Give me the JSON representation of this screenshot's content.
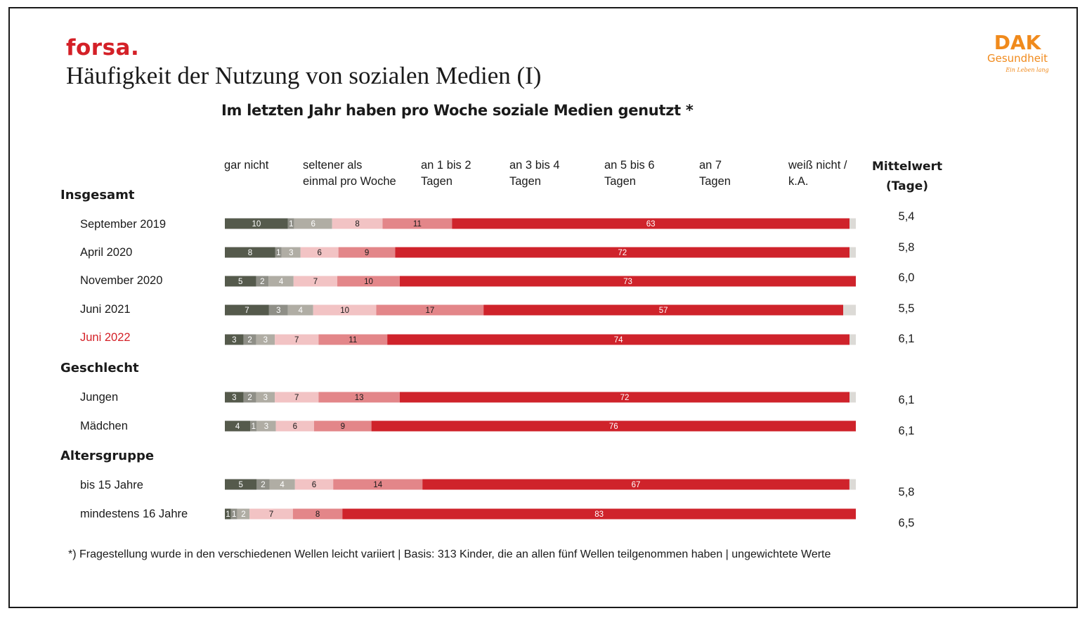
{
  "brand": "forsa.",
  "logo": {
    "line1": "DAK",
    "line2": "Gesundheit",
    "line3": "Ein Leben lang",
    "color": "#f08a1c"
  },
  "title": "Häufigkeit der Nutzung von sozialen Medien (I)",
  "subtitle": "Im letzten Jahr haben pro Woche soziale Medien genutzt *",
  "mean_header": {
    "line1": "Mittelwert",
    "line2": "(Tage)"
  },
  "footnote": "*) Fragestellung wurde in den verschiedenen Wellen leicht variiert | Basis: 313 Kinder, die an allen fünf Wellen teilgenommen haben | ungewichtete Werte",
  "chart_data": {
    "type": "bar",
    "orientation": "horizontal",
    "stacked": true,
    "title": "Im letzten Jahr haben pro Woche soziale Medien genutzt *",
    "xlim": [
      0,
      100
    ],
    "categories_header": [
      "gar nicht",
      "seltener als\neinmal pro Woche",
      "an 1 bis 2\nTagen",
      "an 3 bis 4\nTagen",
      "an 5 bis 6\nTagen",
      "an 7\nTagen",
      "weiß nicht /\nk.A."
    ],
    "colors": [
      "#555a4c",
      "#8f8f87",
      "#b0ada4",
      "#f2c3c4",
      "#e38689",
      "#cf232b",
      "#dcdad6"
    ],
    "groups": [
      {
        "name": "Insgesamt",
        "rows": [
          {
            "label": "September 2019",
            "mean": "5,4",
            "values": [
              10,
              1,
              6,
              8,
              11,
              63,
              1
            ],
            "highlight": false
          },
          {
            "label": "April 2020",
            "mean": "5,8",
            "values": [
              8,
              1,
              3,
              6,
              9,
              72,
              1
            ],
            "highlight": false
          },
          {
            "label": "November 2020",
            "mean": "6,0",
            "values": [
              5,
              2,
              4,
              7,
              10,
              73,
              0
            ],
            "highlight": false
          },
          {
            "label": "Juni 2021",
            "mean": "5,5",
            "values": [
              7,
              3,
              4,
              10,
              17,
              57,
              2
            ],
            "highlight": false
          },
          {
            "label": "Juni 2022",
            "mean": "6,1",
            "values": [
              3,
              2,
              3,
              7,
              11,
              74,
              1
            ],
            "highlight": true
          }
        ]
      },
      {
        "name": "Geschlecht",
        "rows": [
          {
            "label": "Jungen",
            "mean": "6,1",
            "values": [
              3,
              2,
              3,
              7,
              13,
              72,
              1
            ],
            "highlight": false
          },
          {
            "label": "Mädchen",
            "mean": "6,1",
            "values": [
              4,
              1,
              3,
              6,
              9,
              76,
              0
            ],
            "highlight": false
          }
        ]
      },
      {
        "name": "Altersgruppe",
        "rows": [
          {
            "label": "bis 15 Jahre",
            "mean": "5,8",
            "values": [
              5,
              2,
              4,
              6,
              14,
              67,
              1
            ],
            "highlight": false
          },
          {
            "label": "mindestens 16 Jahre",
            "mean": "6,5",
            "values": [
              1,
              1,
              2,
              7,
              8,
              83,
              0
            ],
            "highlight": false
          }
        ]
      }
    ],
    "value_labels_shown_for_series": [
      0,
      1,
      2,
      3,
      4,
      5
    ]
  }
}
